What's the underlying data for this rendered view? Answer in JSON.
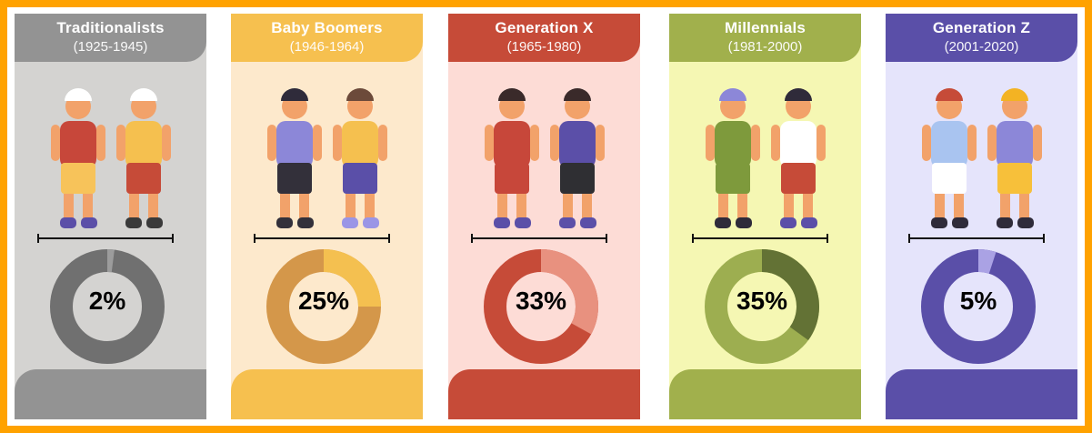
{
  "chart_data": {
    "type": "pie",
    "variant": "donut",
    "categories": [
      "Traditionalists",
      "Baby Boomers",
      "Generation X",
      "Millennials",
      "Generation Z"
    ],
    "values": [
      2,
      25,
      33,
      35,
      5
    ],
    "unit": "%"
  },
  "generations": [
    {
      "name": "Traditionalists",
      "years": "(1925-1945)",
      "percent": 2,
      "label": "2%",
      "colors": {
        "header": "#939393",
        "bg": "#d4d3d1",
        "ring": "#707070",
        "segment": "#9c9c9c"
      }
    },
    {
      "name": "Baby Boomers",
      "years": "(1946-1964)",
      "percent": 25,
      "label": "25%",
      "colors": {
        "header": "#f6c04f",
        "bg": "#fde9cc",
        "ring": "#d4974a",
        "segment": "#f4c050"
      }
    },
    {
      "name": "Generation X",
      "years": "(1965-1980)",
      "percent": 33,
      "label": "33%",
      "colors": {
        "header": "#c64b38",
        "bg": "#fddcd6",
        "ring": "#c64b38",
        "segment": "#e8917f"
      }
    },
    {
      "name": "Millennials",
      "years": "(1981-2000)",
      "percent": 35,
      "label": "35%",
      "colors": {
        "header": "#a1b04c",
        "bg": "#f5f7b3",
        "ring": "#9dae50",
        "segment": "#637235"
      }
    },
    {
      "name": "Generation Z",
      "years": "(2001-2020)",
      "percent": 5,
      "label": "5%",
      "colors": {
        "header": "#5a4fa8",
        "bg": "#e5e4fb",
        "ring": "#5a4fa8",
        "segment": "#aaa2e4"
      }
    }
  ],
  "frame_color": "#ffa200"
}
